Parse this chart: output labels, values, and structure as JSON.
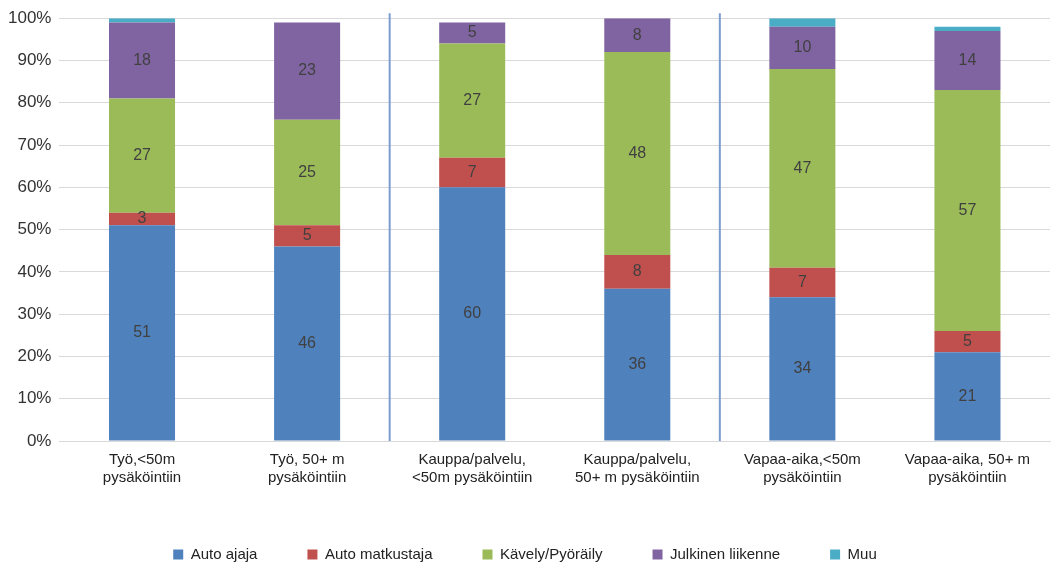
{
  "chart_data": {
    "type": "bar",
    "stacked": true,
    "categories": [
      "Työ,<50m pysäköintiin",
      "Työ, 50+ m pysäköintiin",
      "Kauppa/palvelu, <50m pysäköintiin",
      "Kauppa/palvelu, 50+ m pysäköintiin",
      "Vapaa-aika,<50m pysäköintiin",
      "Vapaa-aika, 50+ m pysäköintiin"
    ],
    "series": [
      {
        "name": "Auto ajaja",
        "color": "#4f81bd",
        "values": [
          51,
          46,
          60,
          36,
          34,
          21
        ],
        "value_labels": [
          "51",
          "46",
          "60",
          "36",
          "34",
          "21"
        ]
      },
      {
        "name": "Auto matkustaja",
        "color": "#c0504d",
        "values": [
          3,
          5,
          7,
          8,
          7,
          5
        ],
        "value_labels": [
          "3",
          "5",
          "7",
          "8",
          "7",
          "5"
        ]
      },
      {
        "name": "Kävely/Pyöräily",
        "color": "#9bbb59",
        "values": [
          27,
          25,
          27,
          48,
          47,
          57
        ],
        "value_labels": [
          "27",
          "25",
          "27",
          "48",
          "47",
          "57"
        ]
      },
      {
        "name": "Julkinen liikenne",
        "color": "#8064a2",
        "values": [
          18,
          23,
          5,
          8,
          10,
          14
        ],
        "value_labels": [
          "18",
          "23",
          "5",
          "8",
          "10",
          "14"
        ]
      },
      {
        "name": "Muu",
        "color": "#4bacc6",
        "values": [
          1,
          0,
          0,
          0,
          2,
          1
        ],
        "value_labels": [
          null,
          null,
          null,
          null,
          null,
          null
        ]
      }
    ],
    "ylim": [
      0,
      100
    ],
    "yticks": [
      {
        "value": 0,
        "label": "0%"
      },
      {
        "value": 10,
        "label": "10%"
      },
      {
        "value": 20,
        "label": "20%"
      },
      {
        "value": 30,
        "label": "30%"
      },
      {
        "value": 40,
        "label": "40%"
      },
      {
        "value": 50,
        "label": "50%"
      },
      {
        "value": 60,
        "label": "60%"
      },
      {
        "value": 70,
        "label": "70%"
      },
      {
        "value": 80,
        "label": "80%"
      },
      {
        "value": 90,
        "label": "90%"
      },
      {
        "value": 100,
        "label": "100%"
      }
    ],
    "grid": "y",
    "legend": "bottom"
  }
}
